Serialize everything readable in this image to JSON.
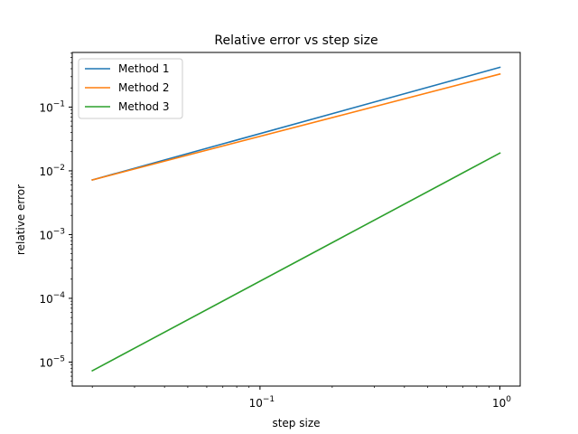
{
  "chart_data": {
    "type": "line",
    "title": "Relative error vs step size",
    "xlabel": "step size",
    "ylabel": "relative error",
    "xscale": "log",
    "yscale": "log",
    "xlim": [
      0.0165,
      1.215
    ],
    "ylim": [
      4.2e-06,
      0.72
    ],
    "x_ticks": [
      {
        "value": 0.1,
        "base": "10",
        "exp": "−1"
      },
      {
        "value": 1,
        "base": "10",
        "exp": "0"
      }
    ],
    "y_ticks": [
      {
        "value": 1e-05,
        "base": "10",
        "exp": "−5"
      },
      {
        "value": 0.0001,
        "base": "10",
        "exp": "−4"
      },
      {
        "value": 0.001,
        "base": "10",
        "exp": "−3"
      },
      {
        "value": 0.01,
        "base": "10",
        "exp": "−2"
      },
      {
        "value": 0.1,
        "base": "10",
        "exp": "−1"
      }
    ],
    "grid": false,
    "legend_position": "upper-left",
    "series": [
      {
        "name": "Method 1",
        "color": "#1f77b4",
        "x": [
          0.02,
          1
        ],
        "y": [
          0.0072,
          0.42
        ]
      },
      {
        "name": "Method 2",
        "color": "#ff7f0e",
        "x": [
          0.02,
          1
        ],
        "y": [
          0.0072,
          0.33
        ]
      },
      {
        "name": "Method 3",
        "color": "#2ca02c",
        "x": [
          0.02,
          1
        ],
        "y": [
          7.3e-06,
          0.019
        ]
      }
    ]
  }
}
